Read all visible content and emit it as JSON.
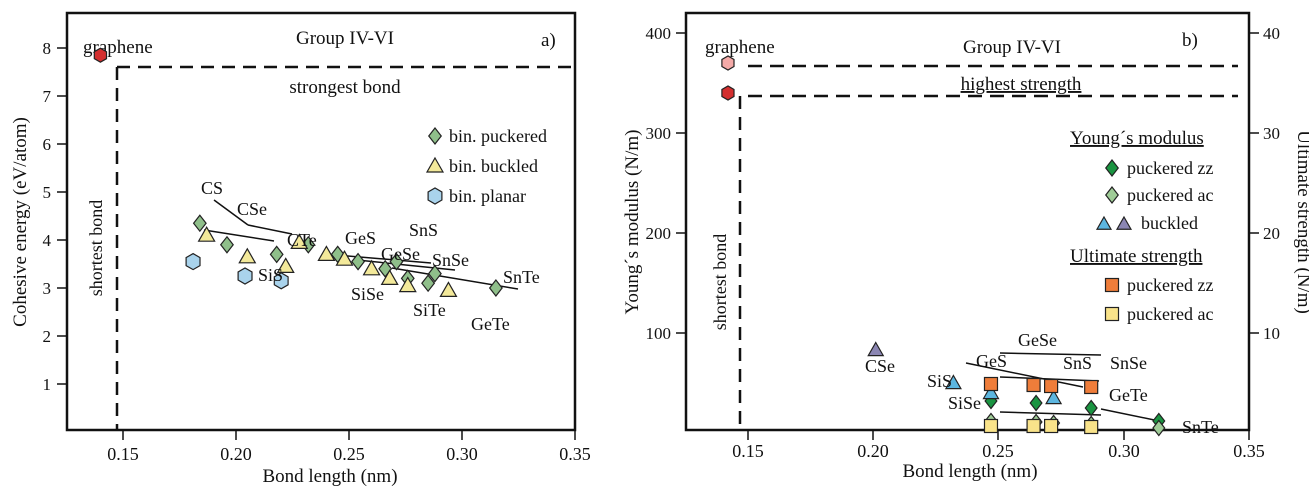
{
  "chart_data": [
    {
      "type": "scatter",
      "panel_label": "a)",
      "title": "Group IV-VI",
      "xlabel": "Bond length (nm)",
      "ylabel": "Cohesive energy (eV/atom)",
      "xlim": [
        0.125,
        0.35
      ],
      "ylim": [
        0.25,
        9.05
      ],
      "xticks": [
        "0.15",
        "0.20",
        "0.25",
        "0.30",
        "0.35"
      ],
      "xtick_values": [
        0.15,
        0.2,
        0.25,
        0.3,
        0.35
      ],
      "yticks": [
        "1",
        "2",
        "3",
        "4",
        "5",
        "6",
        "7",
        "8"
      ],
      "ytick_values": [
        1,
        2,
        3,
        4,
        5,
        6,
        7,
        8
      ],
      "grid": false,
      "legend_position": "middle-right",
      "reference": {
        "label": "graphene",
        "x": 0.14,
        "y": 7.85,
        "color": "#d32f2f",
        "horizontal_annotation": "strongest bond",
        "vertical_annotation": "shortest bond"
      },
      "series": [
        {
          "name": "bin. puckered",
          "marker": "diamond",
          "color": "#8fbf8a",
          "points": [
            {
              "x": 0.184,
              "y": 4.35
            },
            {
              "x": 0.196,
              "y": 3.9
            },
            {
              "x": 0.218,
              "y": 3.7
            },
            {
              "x": 0.232,
              "y": 3.9
            },
            {
              "x": 0.245,
              "y": 3.7
            },
            {
              "x": 0.254,
              "y": 3.55
            },
            {
              "x": 0.266,
              "y": 3.4
            },
            {
              "x": 0.271,
              "y": 3.55
            },
            {
              "x": 0.276,
              "y": 3.2
            },
            {
              "x": 0.285,
              "y": 3.1
            },
            {
              "x": 0.288,
              "y": 3.3
            },
            {
              "x": 0.315,
              "y": 3.0
            }
          ]
        },
        {
          "name": "bin. buckled",
          "marker": "triangle",
          "color": "#f3e99a",
          "points": [
            {
              "x": 0.187,
              "y": 4.1
            },
            {
              "x": 0.205,
              "y": 3.65
            },
            {
              "x": 0.222,
              "y": 3.45
            },
            {
              "x": 0.228,
              "y": 3.95
            },
            {
              "x": 0.24,
              "y": 3.7
            },
            {
              "x": 0.248,
              "y": 3.6
            },
            {
              "x": 0.26,
              "y": 3.4
            },
            {
              "x": 0.268,
              "y": 3.2
            },
            {
              "x": 0.276,
              "y": 3.05
            },
            {
              "x": 0.294,
              "y": 2.95
            }
          ]
        },
        {
          "name": "bin. planar",
          "marker": "hexagon",
          "color": "#a9d3ec",
          "points": [
            {
              "x": 0.181,
              "y": 3.55
            },
            {
              "x": 0.204,
              "y": 3.25
            },
            {
              "x": 0.22,
              "y": 3.15
            }
          ]
        }
      ],
      "annotations": [
        "CS",
        "CSe",
        "CTe",
        "SiS",
        "GeS",
        "SnS",
        "GeSe",
        "SnSe",
        "SiSe",
        "SiTe",
        "SnTe",
        "GeTe"
      ]
    },
    {
      "type": "scatter",
      "panel_label": "b)",
      "title": "Group IV-VI",
      "xlabel": "Bond length (nm)",
      "ylabel": "Young´s modulus (N/m)",
      "y2label": "Ultimate strength (N/m)",
      "xlim": [
        0.125,
        0.35
      ],
      "ylim": [
        0,
        420
      ],
      "y2lim": [
        0,
        42
      ],
      "xticks": [
        "0.15",
        "0.20",
        "0.25",
        "0.30",
        "0.35"
      ],
      "xtick_values": [
        0.15,
        0.2,
        0.25,
        0.3,
        0.35
      ],
      "yticks": [
        "100",
        "200",
        "300",
        "400"
      ],
      "ytick_values": [
        100,
        200,
        300,
        400
      ],
      "y2ticks": [
        "10",
        "20",
        "30",
        "40"
      ],
      "y2tick_values": [
        10,
        20,
        30,
        40
      ],
      "grid": false,
      "legend_position": "right",
      "reference": {
        "label": "graphene",
        "x": 0.142,
        "young_modulus": 340,
        "ultimate_strength": 37,
        "young_color": "#d32f2f",
        "strength_color": "#f4aaa8",
        "horizontal_annotation": "highest strength",
        "vertical_annotation": "shortest bond"
      },
      "legend_headers": [
        "Young´s modulus",
        "Ultimate strength"
      ],
      "series": [
        {
          "name": "puckered zz",
          "group": "Young´s modulus",
          "marker": "diamond",
          "color": "#1a9441",
          "points": [
            {
              "x": 0.247,
              "y": 32
            },
            {
              "x": 0.265,
              "y": 30
            },
            {
              "x": 0.287,
              "y": 25
            },
            {
              "x": 0.314,
              "y": 12
            }
          ]
        },
        {
          "name": "puckered ac",
          "group": "Young´s modulus",
          "marker": "diamond",
          "color": "#9fcc97",
          "points": [
            {
              "x": 0.247,
              "y": 12
            },
            {
              "x": 0.265,
              "y": 11
            },
            {
              "x": 0.272,
              "y": 10
            },
            {
              "x": 0.287,
              "y": 9
            },
            {
              "x": 0.314,
              "y": 5
            }
          ]
        },
        {
          "name": "buckled",
          "group": "Young´s modulus",
          "marker": "triangle",
          "color": "#5cb6e0",
          "points": [
            {
              "x": 0.232,
              "y": 50
            },
            {
              "x": 0.247,
              "y": 40
            },
            {
              "x": 0.272,
              "y": 35
            }
          ]
        },
        {
          "name": "buckled",
          "group": "Young´s modulus",
          "marker": "triangle",
          "color": "#8b86b3",
          "points": [
            {
              "x": 0.201,
              "y": 83
            }
          ]
        },
        {
          "name": "puckered zz",
          "group": "Ultimate strength",
          "marker": "square",
          "color": "#ef7d3a",
          "points": [
            {
              "x": 0.247,
              "y": 4.9
            },
            {
              "x": 0.264,
              "y": 4.8
            },
            {
              "x": 0.271,
              "y": 4.7
            },
            {
              "x": 0.287,
              "y": 4.6
            }
          ]
        },
        {
          "name": "puckered ac",
          "group": "Ultimate strength",
          "marker": "square",
          "color": "#f9e38a",
          "points": [
            {
              "x": 0.247,
              "y": 0.7
            },
            {
              "x": 0.264,
              "y": 0.7
            },
            {
              "x": 0.271,
              "y": 0.7
            },
            {
              "x": 0.287,
              "y": 0.6
            }
          ]
        }
      ],
      "annotations": [
        "CSe",
        "SiS",
        "GeS",
        "GeSe",
        "SnS",
        "SnSe",
        "SiSe",
        "GeTe",
        "SnTe"
      ]
    }
  ]
}
